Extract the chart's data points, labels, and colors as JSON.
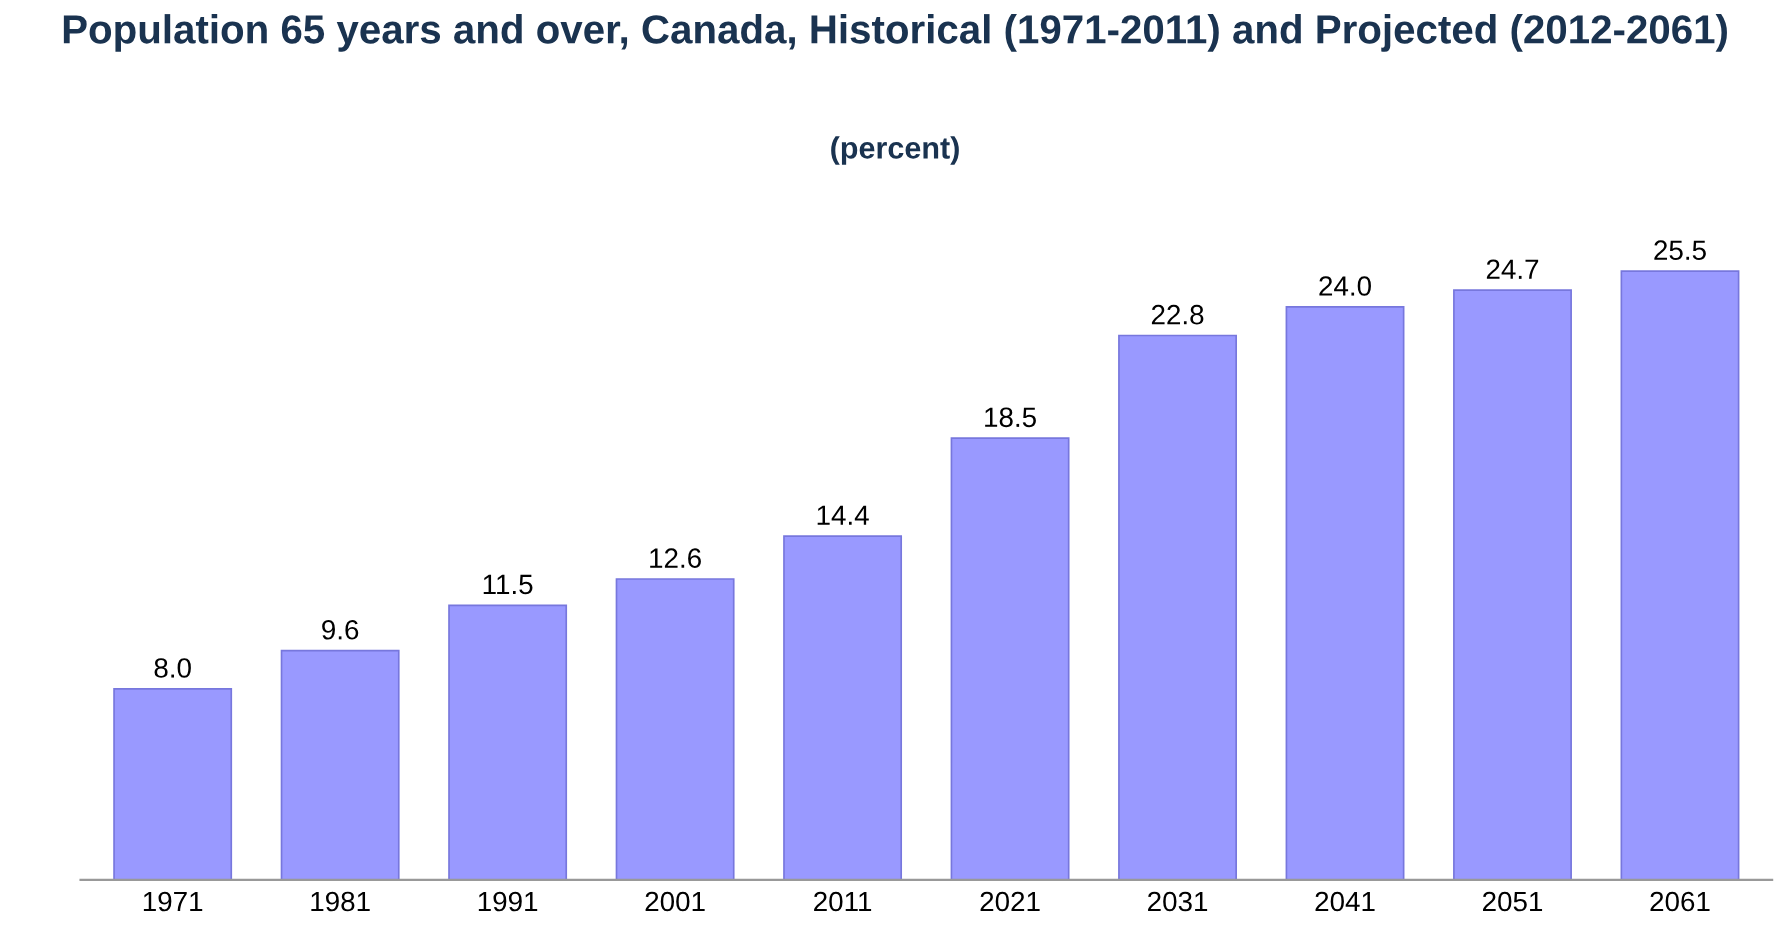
{
  "chart_data": {
    "type": "bar",
    "title": "Population 65 years and over, Canada, Historical (1971-2011) and Projected (2012-2061)",
    "subtitle": "(percent)",
    "categories": [
      "1971",
      "1981",
      "1991",
      "2001",
      "2011",
      "2021",
      "2031",
      "2041",
      "2051",
      "2061"
    ],
    "values": [
      8.0,
      9.6,
      11.5,
      12.6,
      14.4,
      18.5,
      22.8,
      24.0,
      24.7,
      25.5
    ],
    "value_labels": [
      "8.0",
      "9.6",
      "11.5",
      "12.6",
      "14.4",
      "18.5",
      "22.8",
      "24.0",
      "24.7",
      "25.5"
    ],
    "color": "#9999ff",
    "tick_labels": "x",
    "grid": false,
    "legend": false
  }
}
